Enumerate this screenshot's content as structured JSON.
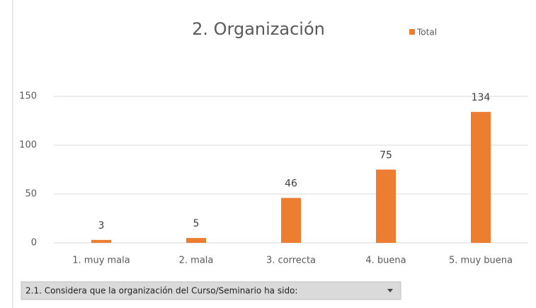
{
  "chart_data": {
    "type": "bar",
    "title": "2. Organización",
    "categories": [
      "1. muy mala",
      "2. mala",
      "3. correcta",
      "4. buena",
      "5. muy buena"
    ],
    "series": [
      {
        "name": "Total",
        "color": "#ed7d31",
        "values": [
          3,
          5,
          46,
          75,
          134
        ]
      }
    ],
    "ylim": [
      0,
      150
    ],
    "yticks": [
      0,
      50,
      100,
      150
    ],
    "grid": true,
    "legend": "top-right",
    "field_button": "2.1. Considera que la organización del Curso/Seminario ha sido:"
  }
}
